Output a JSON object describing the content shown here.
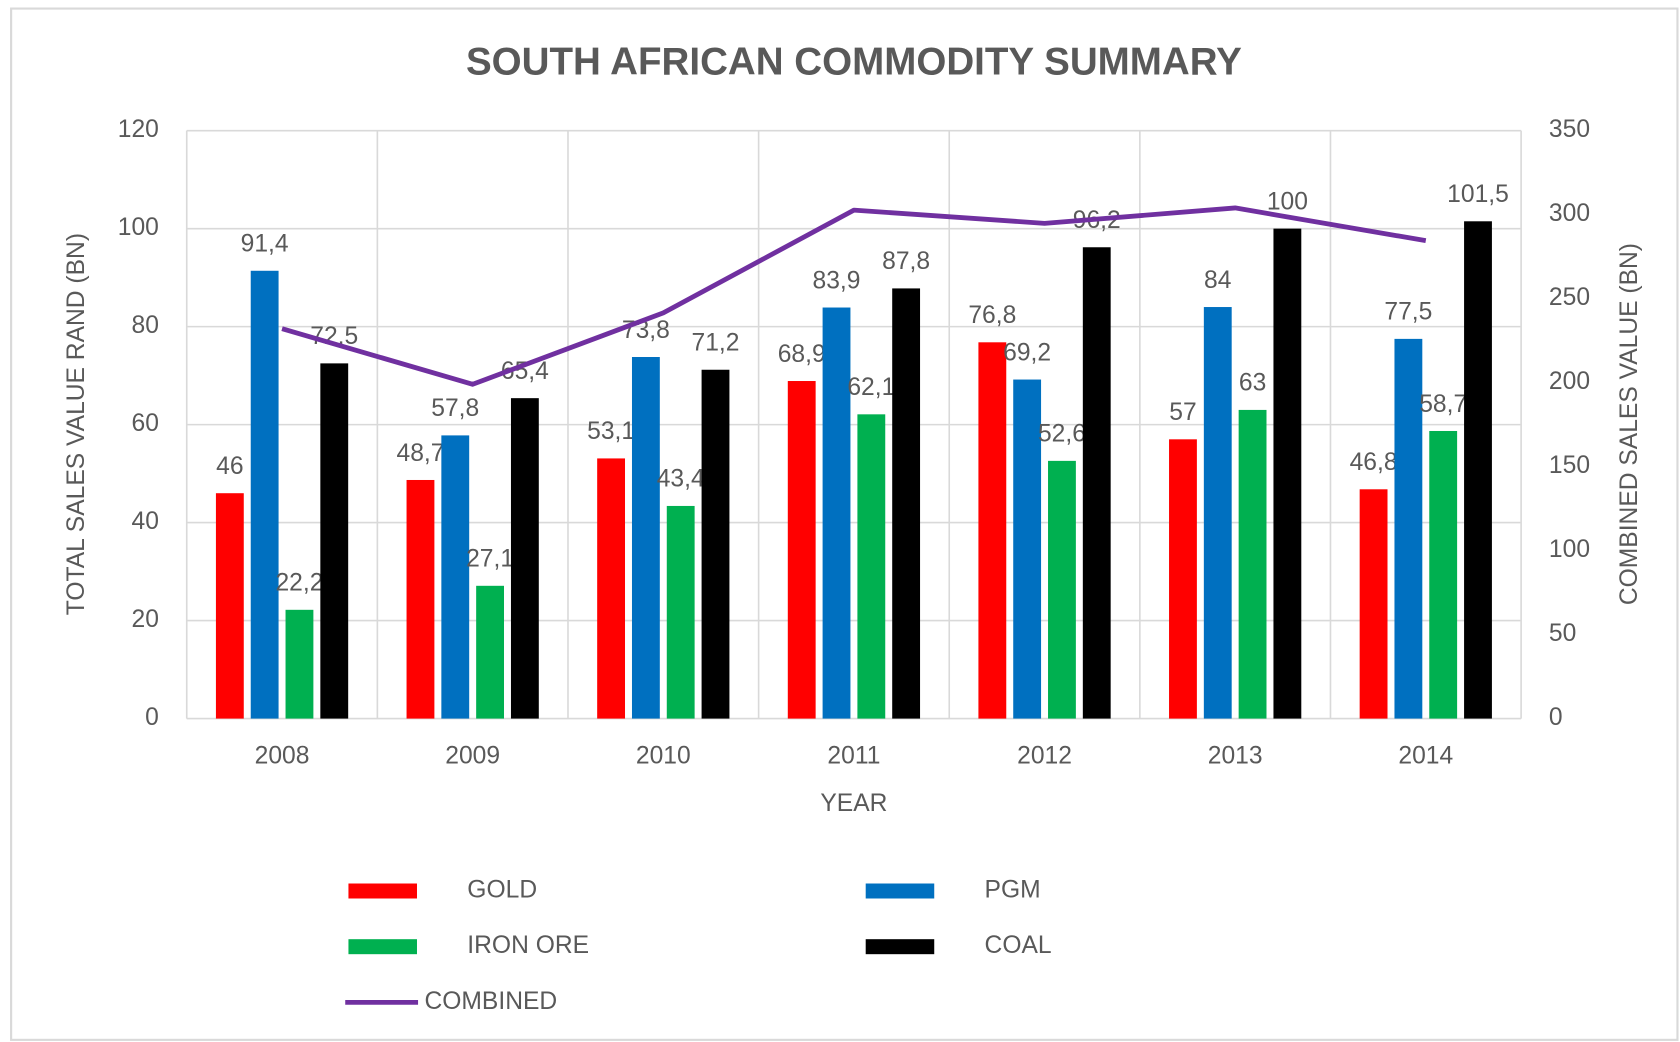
{
  "chart_data": {
    "type": "bar",
    "title": "SOUTH AFRICAN COMMODITY SUMMARY",
    "x_label": "YEAR",
    "y_label": "TOTAL SALES VALUE RAND (BN)",
    "y2_label": "COMBINED SALES VALUE (BN)",
    "categories": [
      "2008",
      "2009",
      "2010",
      "2011",
      "2012",
      "2013",
      "2014"
    ],
    "ylim": [
      0,
      120
    ],
    "yticks": [
      0,
      20,
      40,
      60,
      80,
      100,
      120
    ],
    "y2lim": [
      0,
      350
    ],
    "y2ticks": [
      0,
      50,
      100,
      150,
      200,
      250,
      300,
      350
    ],
    "grid": true,
    "legend": "bottom",
    "series": [
      {
        "name": "GOLD",
        "color": "#ff0000",
        "type": "bar",
        "values": [
          46,
          48.7,
          53.1,
          68.9,
          76.8,
          57,
          46.8
        ],
        "value_labels": [
          "46",
          "48,7",
          "53,1",
          "68,9",
          "76,8",
          "57",
          "46,8"
        ]
      },
      {
        "name": "PGM",
        "color": "#0070c0",
        "type": "bar",
        "values": [
          91.4,
          57.8,
          73.8,
          83.9,
          69.2,
          84,
          77.5
        ],
        "value_labels": [
          "91,4",
          "57,8",
          "73,8",
          "83,9",
          "69,2",
          "84",
          "77,5"
        ]
      },
      {
        "name": "IRON ORE",
        "color": "#00b050",
        "type": "bar",
        "values": [
          22.2,
          27.1,
          43.4,
          62.1,
          52.6,
          63,
          58.7
        ],
        "value_labels": [
          "22,2",
          "27,1",
          "43,4",
          "62,1",
          "52,6",
          "63",
          "58,7"
        ]
      },
      {
        "name": "COAL",
        "color": "#000000",
        "type": "bar",
        "values": [
          72.5,
          65.4,
          71.2,
          87.8,
          96.2,
          100,
          101.5
        ],
        "value_labels": [
          "72,5",
          "65,4",
          "71,2",
          "87,8",
          "96,2",
          "100",
          "101,5"
        ]
      },
      {
        "name": "COMBINED",
        "color": "#7030a0",
        "type": "line",
        "axis": "y2",
        "values": [
          232.1,
          199,
          241.5,
          302.7,
          294.8,
          304,
          284.5
        ]
      }
    ]
  }
}
